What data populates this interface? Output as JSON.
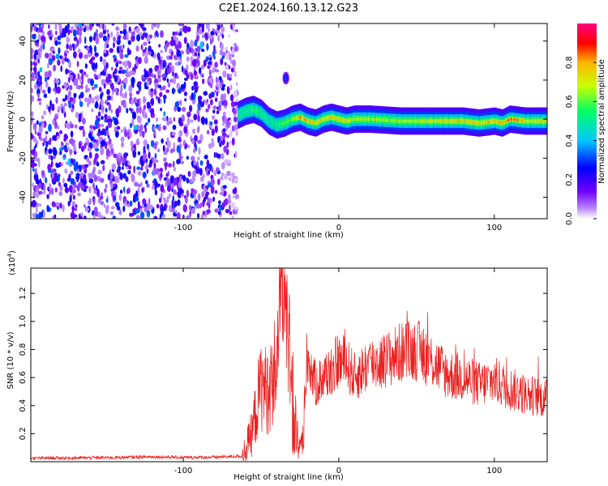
{
  "figure": {
    "title": "C2E1.2024.160.13.12.G23"
  },
  "chart_data": [
    {
      "type": "heatmap",
      "title": "C2E1.2024.160.13.12.G23",
      "xlabel": "Height of straight line (km)",
      "ylabel": "Frequency (Hz)",
      "xlim": [
        -198,
        134
      ],
      "ylim": [
        -51,
        49
      ],
      "xticks": [
        -100,
        0,
        100
      ],
      "yticks": [
        -40,
        -20,
        0,
        20,
        40
      ],
      "colorbar": {
        "label": "Normalized spectral amplitude",
        "range": [
          0.0,
          1.0
        ],
        "ticks": [
          "0.0",
          "0.2",
          "0.4",
          "0.6",
          "0.8"
        ],
        "colormap": [
          "#ffffff",
          "#7b00ff",
          "#0000ff",
          "#00c8ff",
          "#00ff64",
          "#c8ff00",
          "#ffb400",
          "#ff0000",
          "#ff0080"
        ]
      },
      "noise_region": {
        "x": [
          -198,
          -65
        ],
        "amplitude": "low (0.1-0.3)"
      },
      "ridge": {
        "x": [
          -65,
          -60,
          -55,
          -50,
          -45,
          -40,
          -35,
          -30,
          -25,
          -20,
          -15,
          -10,
          -5,
          0,
          5,
          10,
          20,
          40,
          60,
          80,
          90,
          100,
          105,
          110,
          120,
          134
        ],
        "frequency_hz": [
          2,
          4,
          5,
          3,
          -1,
          -3,
          -2,
          0,
          1,
          -1,
          -2,
          0,
          1,
          0,
          -1,
          0,
          0,
          -1,
          -1,
          -1,
          -2,
          -1,
          -2,
          0,
          -1,
          -1
        ],
        "peak_amplitude": [
          0.5,
          0.55,
          0.6,
          0.55,
          0.5,
          0.55,
          0.6,
          0.65,
          0.85,
          0.8,
          0.8,
          0.75,
          0.8,
          0.8,
          0.75,
          0.7,
          0.7,
          0.7,
          0.75,
          0.8,
          0.8,
          0.8,
          0.85,
          0.9,
          0.75,
          0.75
        ]
      },
      "blob": {
        "x": -34,
        "frequency_hz": 21,
        "amplitude": 0.3
      }
    },
    {
      "type": "line",
      "title": "",
      "xlabel": "Height of straight line (km)",
      "ylabel": "SNR (10 * v/v)",
      "y_scale_label": "(x10",
      "y_scale_exponent": "4",
      "scale_close": ")",
      "xlim": [
        -198,
        134
      ],
      "ylim": [
        0.0,
        1.38
      ],
      "xticks": [
        -100,
        0,
        100
      ],
      "yticks": [
        "0.2",
        "0.4",
        "0.6",
        "0.8",
        "1.0",
        "1.2"
      ],
      "series": [
        {
          "color": "#e8201e",
          "x": [
            -198,
            -170,
            -140,
            -120,
            -100,
            -80,
            -62,
            -56,
            -50,
            -45,
            -40,
            -37,
            -34,
            -30,
            -25,
            -20,
            -15,
            -10,
            -5,
            0,
            5,
            10,
            20,
            30,
            40,
            50,
            60,
            70,
            80,
            90,
            100,
            110,
            120,
            134
          ],
          "y": [
            0.025,
            0.027,
            0.03,
            0.035,
            0.03,
            0.032,
            0.04,
            0.2,
            0.55,
            0.5,
            0.7,
            1.05,
            1.15,
            0.55,
            0.05,
            0.75,
            0.55,
            0.6,
            0.65,
            0.72,
            0.7,
            0.6,
            0.7,
            0.72,
            0.78,
            0.8,
            0.72,
            0.62,
            0.6,
            0.55,
            0.58,
            0.52,
            0.48,
            0.45
          ]
        }
      ]
    }
  ]
}
